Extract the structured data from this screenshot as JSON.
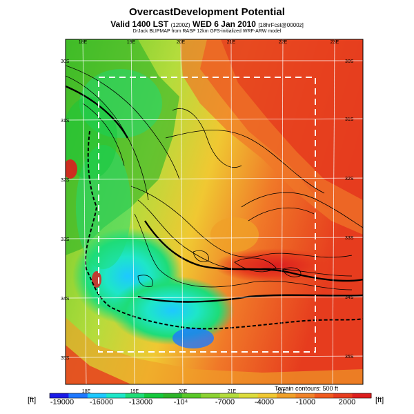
{
  "header": {
    "title": "OvercastDevelopment Potential",
    "valid_main": "Valid 1400 LST",
    "valid_z": "(1200Z)",
    "valid_date": "WED 6 Jan 2010",
    "forecast": "[18hrFcst@0000z]",
    "credit": "DrJack BLIPMAP from RASP 12km GFS-initialized WRF-ARW model"
  },
  "map": {
    "lon_labels_top": [
      "18E",
      "19E",
      "20E",
      "21E",
      "22E",
      "23E"
    ],
    "lon_labels_bottom": [
      "18E",
      "19E",
      "20E",
      "21E",
      "22E"
    ],
    "lat_labels_left": [
      "30S",
      "31S",
      "32S",
      "33S",
      "34S",
      "35S"
    ],
    "lat_labels_right": [
      "30S",
      "31S",
      "32S",
      "33S",
      "34S",
      "35S"
    ],
    "terrain_note": "Terrain contours: 500 ft"
  },
  "colorbar": {
    "unit_left": "[ft]",
    "unit_right": "[ft]",
    "tick_labels": [
      "-19000",
      "-16000",
      "-13000",
      "-10⁴",
      "-7000",
      "-4000",
      "-1000",
      "2000"
    ],
    "colors": [
      "#1a1ae6",
      "#1e78ff",
      "#1ec8ff",
      "#1ee6c8",
      "#1edc78",
      "#14c83c",
      "#2db428",
      "#5ac828",
      "#8cd232",
      "#b4dc3c",
      "#dcdc3c",
      "#f0c832",
      "#f0a028",
      "#f08228",
      "#f05a1e",
      "#e63c1e",
      "#dc1e1e"
    ]
  }
}
